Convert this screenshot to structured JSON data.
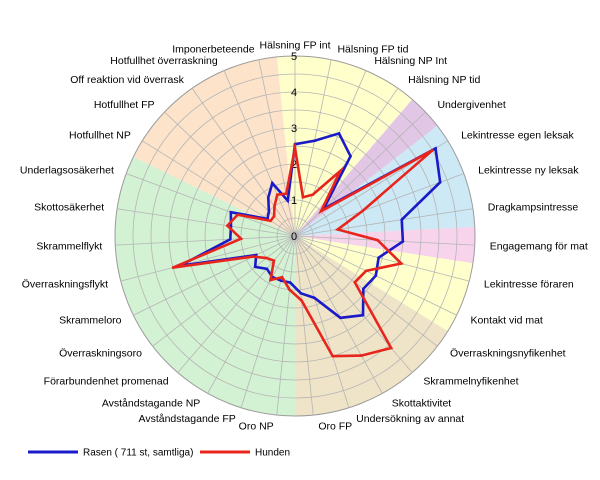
{
  "chart_data": {
    "type": "radar",
    "title": "",
    "categories": [
      "Hälsning FP int",
      "Hälsning FP tid",
      "Hälsning NP Int",
      "Hälsning NP tid",
      "Undergivenhet",
      "Lekintresse egen leksak",
      "Lekintresse ny leksak",
      "Dragkampsintresse",
      "Engagemang för mat",
      "Lekintresse föraren",
      "Kontakt vid mat",
      "Överraskningsnyfikenhet",
      "Skrammelnyfikenhet",
      "Skottaktivitet",
      "Undersökning av annat",
      "Oro FP",
      "Oro NP",
      "Avståndstagande FP",
      "Avståndstagande NP",
      "Förarbundenhet promenad",
      "Överraskningsoro",
      "Skrammeloro",
      "Överraskningsflykt",
      "Skrammelflykt",
      "Skottosäkerhet",
      "Underlagsosäkerhet",
      "Hotfullhet NP",
      "Hotfullhet FP",
      "Off reaktion vid överrask",
      "Hotfullhet överraskning",
      "Imponerbeteende"
    ],
    "category_colors": [
      "#ffffcc",
      "#ffffcc",
      "#ffffcc",
      "#ffffcc",
      "#e2c6e6",
      "#cce9f5",
      "#cce9f5",
      "#cce9f5",
      "#f8d4ec",
      "#ffffcc",
      "#ffffcc",
      "#efe4c7",
      "#efe4c7",
      "#efe4c7",
      "#efe4c7",
      "#efe4c7",
      "#d3f1d3",
      "#d3f1d3",
      "#d3f1d3",
      "#d3f1d3",
      "#d3f1d3",
      "#d3f1d3",
      "#d3f1d3",
      "#d3f1d3",
      "#d3f1d3",
      "#d3f1d3",
      "#fce3ca",
      "#fce3ca",
      "#fce3ca",
      "#fce3ca",
      "#fce3ca"
    ],
    "series": [
      {
        "name": "Rasen ( 711 st, samtliga)",
        "color": "#1a1ac8",
        "values": [
          2.55,
          2.7,
          3.1,
          2.7,
          1.1,
          4.6,
          4.3,
          3.0,
          3.0,
          2.4,
          2.5,
          2.4,
          2.9,
          2.6,
          1.8,
          1.6,
          1.3,
          1.3,
          1.3,
          1.2,
          1.4,
          1.2,
          3.3,
          1.8,
          1.8,
          1.9,
          0.9,
          1.0,
          1.3,
          1.6,
          1.0
        ]
      },
      {
        "name": "Hunden",
        "color": "#e8251c",
        "values": [
          2.45,
          1.1,
          1.25,
          2.2,
          1.0,
          4.5,
          2.0,
          1.2,
          2.3,
          3.05,
          2.2,
          2.1,
          4.1,
          3.8,
          3.5,
          1.8,
          1.5,
          1.2,
          1.4,
          0.9,
          1.0,
          1.3,
          3.5,
          1.5,
          1.9,
          1.7,
          0.8,
          0.8,
          1.0,
          1.25,
          1.2
        ]
      }
    ],
    "rlim": [
      0,
      5
    ],
    "rticks": [
      "0",
      "1",
      "2",
      "3",
      "4",
      "5"
    ],
    "grid": true,
    "grid_step": 0.5,
    "legend": "bottom-left"
  }
}
